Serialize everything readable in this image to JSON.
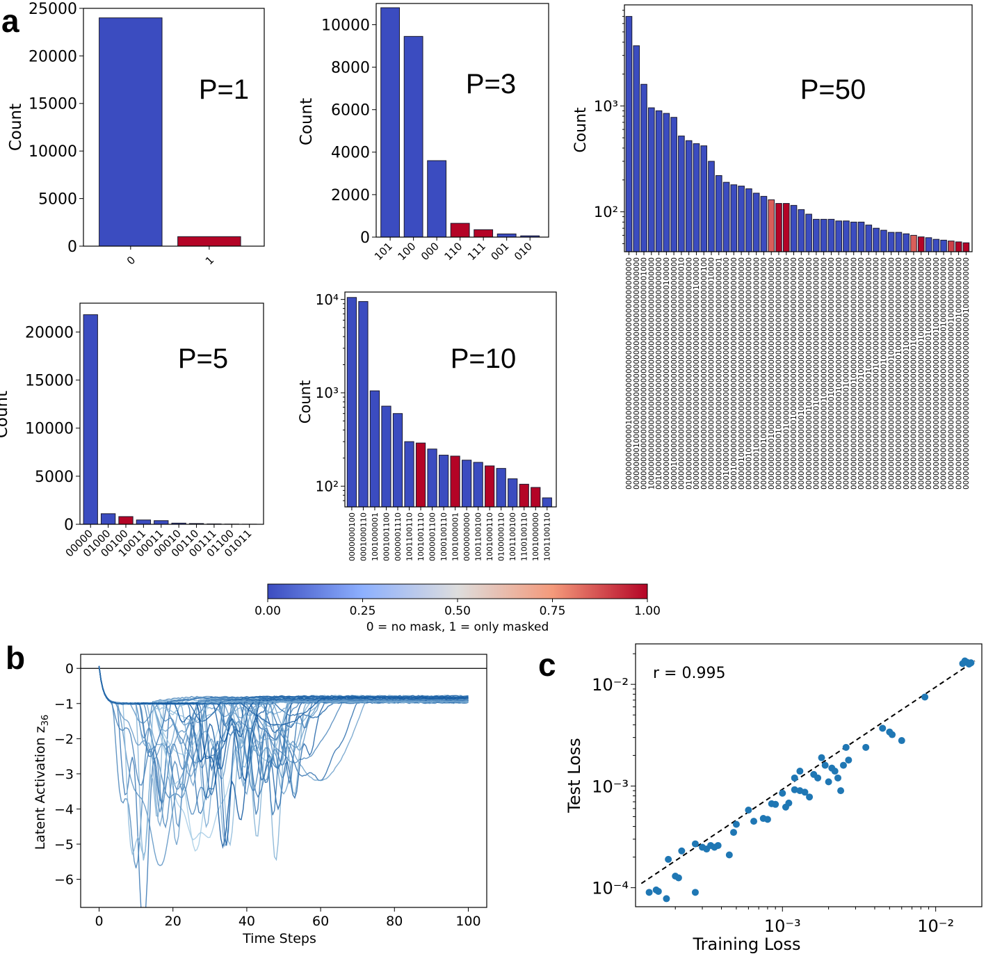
{
  "panel_labels": {
    "a": "a",
    "b": "b",
    "c": "c"
  },
  "colors": {
    "unmasked": "#3b4cc0",
    "masked": "#b40426",
    "line_dark": "#08519c",
    "line_light": "#9ecae1",
    "scatter": "#1f77b4"
  },
  "chart_data": [
    {
      "id": "p1",
      "type": "bar",
      "title": "P=1",
      "ylabel": "Count",
      "yscale": "linear",
      "ylim": [
        0,
        25000
      ],
      "yticks": [
        0,
        5000,
        10000,
        15000,
        20000,
        25000
      ],
      "ytick_labels": [
        "0",
        "5000",
        "10000",
        "15000",
        "20000",
        "25000"
      ],
      "categories": [
        "0",
        "1"
      ],
      "values": [
        24000,
        1000
      ],
      "masked_fraction": [
        0,
        1
      ]
    },
    {
      "id": "p3",
      "type": "bar",
      "title": "P=3",
      "ylabel": "Count",
      "yscale": "linear",
      "ylim": [
        0,
        11000
      ],
      "yticks": [
        0,
        2000,
        4000,
        6000,
        8000,
        10000
      ],
      "ytick_labels": [
        "0",
        "2000",
        "4000",
        "6000",
        "8000",
        "10000"
      ],
      "categories": [
        "101",
        "100",
        "000",
        "110",
        "111",
        "001",
        "010"
      ],
      "values": [
        10800,
        9450,
        3600,
        650,
        350,
        150,
        60
      ],
      "masked_fraction": [
        0,
        0,
        0,
        1,
        1,
        0,
        0
      ]
    },
    {
      "id": "p50",
      "type": "bar",
      "title": "P=50",
      "ylabel": "Count",
      "yscale": "log",
      "ylim": [
        42,
        9000
      ],
      "yticks": [
        100,
        1000
      ],
      "ytick_labels": [
        "10²",
        "10³"
      ],
      "categories": [
        "00000000000000100000000000000000000000000000000000",
        "00000000010000000000000000000000000000000000000000",
        "00000000000000000000000000000000000000000000001000",
        "10000000000000000000000000000000000000000000000000",
        "00100000000000000000000000000000000000000000000000",
        "00000000000000000000000000000000000000000000100000",
        "00000100000000000000000000000000000000000000000000",
        "00000000000000000000000000000000000000000000000010",
        "01000000000000000000000000000000000000000000000000",
        "00000000000000000000000000000000000000000001000000",
        "00000000000000000000000000000000000000000000000100",
        "00000000000000000000000000000000000000000000010000",
        "00000000000000000000000000000000000000000000000001",
        "00010000000000000000000000000000000000000000000000",
        "00001000000000000000000000000000000000000000000000",
        "00000010000000000000000000000000000000000000000000",
        "00000001000000000000000000000000000000000000000000",
        "00000000100000000000000000000000000000000000000000",
        "00000000001000000000000000000000000000000000000000",
        "00000000000100000000000000000000000000000000000000",
        "00000000000010000000000000000000000000000000000000",
        "00000000000001000000000000000000000000000000000000",
        "00000000000000010000000000000000000000000000000000",
        "00000000000000001000000000000000000000000000000000",
        "00000000000000000100000000000000000000000000000000",
        "00000000000000000010000000000000000000000000000000",
        "00000000000000000001000000000000000000000000000000",
        "00000000000000000000100000000000000000000000000000",
        "00000000000000000000010000000000000000000000000000",
        "00000000000000000000001000000000000000000000000000",
        "00000000000000000000000100000000000000000000000000",
        "00000000000000000000000010000000000000000000000000",
        "00000000000000000000000001000000000000000000000000",
        "00000000000000000000000000100000000000000000000000",
        "00000000000000000000000000010000000000000000000000",
        "00000000000000000000000000001000000000000000000000",
        "00000000000000000000000000000100000000000000000000",
        "00000000000000000000000000000010000000000000000000",
        "00000000000000000000000000000001000000000000000000",
        "00000000000000000000000000000000100000000000000000",
        "00000000000000000000000000000000010000000000000000",
        "00000000000000000000000000000000001000000000000000",
        "00000000000000000000000000000000000100000000000000",
        "00000000000000000000000000000000000010000000000000",
        "00000000000000000000000000000000000001000000000000",
        "00000000000000000000000000000000000000100000000000"
      ],
      "values": [
        7000,
        3700,
        1600,
        960,
        900,
        850,
        780,
        520,
        470,
        440,
        420,
        300,
        220,
        190,
        180,
        175,
        165,
        150,
        140,
        130,
        120,
        120,
        115,
        105,
        95,
        85,
        85,
        85,
        82,
        82,
        80,
        80,
        75,
        70,
        67,
        64,
        64,
        62,
        60,
        58,
        57,
        55,
        54,
        53,
        52,
        51
      ],
      "masked_fraction": [
        0,
        0,
        0,
        0,
        0,
        0,
        0,
        0,
        0,
        0,
        0,
        0,
        0,
        0,
        0,
        0,
        0,
        0,
        0,
        0.85,
        1,
        1,
        0,
        0,
        0,
        0,
        0,
        0,
        0,
        0,
        0,
        0,
        0,
        0,
        0,
        0,
        0,
        0,
        0.85,
        1,
        0,
        0,
        0,
        0.9,
        1,
        1
      ]
    },
    {
      "id": "p5",
      "type": "bar",
      "title": "P=5",
      "ylabel": "Count",
      "yscale": "linear",
      "ylim": [
        0,
        23000
      ],
      "yticks": [
        0,
        5000,
        10000,
        15000,
        20000
      ],
      "ytick_labels": [
        "0",
        "5000",
        "10000",
        "15000",
        "20000"
      ],
      "categories": [
        "00000",
        "01000",
        "00100",
        "10011",
        "00011",
        "00010",
        "00110",
        "00111",
        "01100",
        "01011"
      ],
      "values": [
        21800,
        1100,
        800,
        450,
        380,
        120,
        80,
        40,
        20,
        10
      ],
      "masked_fraction": [
        0,
        0,
        1,
        0,
        0,
        0,
        0,
        0,
        0,
        0
      ]
    },
    {
      "id": "p10",
      "type": "bar",
      "title": "P=10",
      "ylabel": "Count",
      "yscale": "log",
      "ylim": [
        60,
        12000
      ],
      "yticks": [
        100,
        1000,
        10000
      ],
      "ytick_labels": [
        "10²",
        "10³",
        "10⁴"
      ],
      "categories": [
        "0000000100",
        "0001000110",
        "1001000001",
        "0001001100",
        "0000001110",
        "1001100110",
        "1001001110",
        "0000001100",
        "1000100110",
        "1001000001",
        "0000000000",
        "1001100100",
        "1001000110",
        "0100000110",
        "1001100100",
        "1100100110",
        "1001000000",
        "1001100110"
      ],
      "values": [
        10500,
        9500,
        1050,
        720,
        600,
        300,
        290,
        250,
        215,
        210,
        190,
        180,
        165,
        155,
        120,
        105,
        97,
        75
      ],
      "masked_fraction": [
        0,
        0,
        0,
        0,
        0,
        0,
        1,
        0,
        0,
        1,
        0,
        0,
        1,
        0,
        0,
        1,
        1,
        0
      ]
    },
    {
      "id": "colorbar",
      "type": "heatmap",
      "label": "0 = no mask, 1 = only masked",
      "range": [
        0,
        1
      ],
      "ticks": [
        0,
        0.25,
        0.5,
        0.75,
        1
      ],
      "tick_labels": [
        "0.00",
        "0.25",
        "0.50",
        "0.75",
        "1.00"
      ]
    },
    {
      "id": "b",
      "type": "line",
      "xlabel": "Time Steps",
      "ylabel": "Latent Activation z",
      "ylabel_subscript": "36",
      "xlim": [
        -5,
        105
      ],
      "ylim": [
        -6.8,
        0.4
      ],
      "xticks": [
        0,
        20,
        40,
        60,
        80,
        100
      ],
      "xtick_labels": [
        "0",
        "20",
        "40",
        "60",
        "80",
        "100"
      ],
      "yticks": [
        0,
        -1,
        -2,
        -3,
        -4,
        -5,
        -6
      ],
      "ytick_labels": [
        "0",
        "−1",
        "−2",
        "−3",
        "−4",
        "−5",
        "−6"
      ],
      "series_count": 60,
      "series_description": "curves start at 0, drop to about −1, dip between t≈5 and t≈55 to minima between −1 and −6.4, then plateau near −0.85"
    },
    {
      "id": "c",
      "type": "scatter",
      "xscale": "log",
      "yscale": "log",
      "xlabel": "Training Loss",
      "ylabel": "Test Loss",
      "annotation": "r = 0.995",
      "xlim": [
        0.00011,
        0.02
      ],
      "ylim": [
        6.5e-05,
        0.025
      ],
      "xticks": [
        0.001,
        0.01
      ],
      "xtick_labels": [
        "10⁻³",
        "10⁻²"
      ],
      "yticks": [
        0.0001,
        0.001,
        0.01
      ],
      "ytick_labels": [
        "10⁻⁴",
        "10⁻³",
        "10⁻²"
      ],
      "reference_line": {
        "x": [
          0.00012,
          0.018
        ],
        "y": [
          0.00011,
          0.017
        ]
      },
      "x": [
        0.000135,
        0.00015,
        0.000155,
        0.000175,
        0.00018,
        0.0002,
        0.00021,
        0.00022,
        0.00027,
        0.00027,
        0.0003,
        0.00032,
        0.00034,
        0.00036,
        0.00038,
        0.00045,
        0.00048,
        0.0005,
        0.0006,
        0.00065,
        0.00075,
        0.0008,
        0.00085,
        0.0009,
        0.001,
        0.00105,
        0.0011,
        0.0012,
        0.0012,
        0.0013,
        0.0013,
        0.0014,
        0.0015,
        0.0016,
        0.0017,
        0.0018,
        0.0019,
        0.002,
        0.0021,
        0.0022,
        0.0023,
        0.0024,
        0.0025,
        0.0026,
        0.0027,
        0.0035,
        0.0045,
        0.005,
        0.0052,
        0.006,
        0.0085,
        0.015,
        0.0155,
        0.016,
        0.0165,
        0.017
      ],
      "y": [
        9e-05,
        9.5e-05,
        9.2e-05,
        7.8e-05,
        0.00019,
        0.00013,
        0.000125,
        0.00023,
        0.00027,
        9e-05,
        0.00025,
        0.00024,
        0.00026,
        0.00025,
        0.00026,
        0.00021,
        0.00035,
        0.00042,
        0.00058,
        0.00045,
        0.00048,
        0.00047,
        0.00067,
        0.00066,
        0.00085,
        0.00062,
        0.00068,
        0.00092,
        0.0012,
        0.0009,
        0.0014,
        0.00087,
        0.00078,
        0.0013,
        0.0012,
        0.0019,
        0.0016,
        0.0011,
        0.0015,
        0.0014,
        0.0012,
        0.0009,
        0.0016,
        0.0024,
        0.0018,
        0.0024,
        0.0037,
        0.0034,
        0.0032,
        0.0028,
        0.0075,
        0.016,
        0.017,
        0.0165,
        0.0158,
        0.0163
      ]
    }
  ]
}
